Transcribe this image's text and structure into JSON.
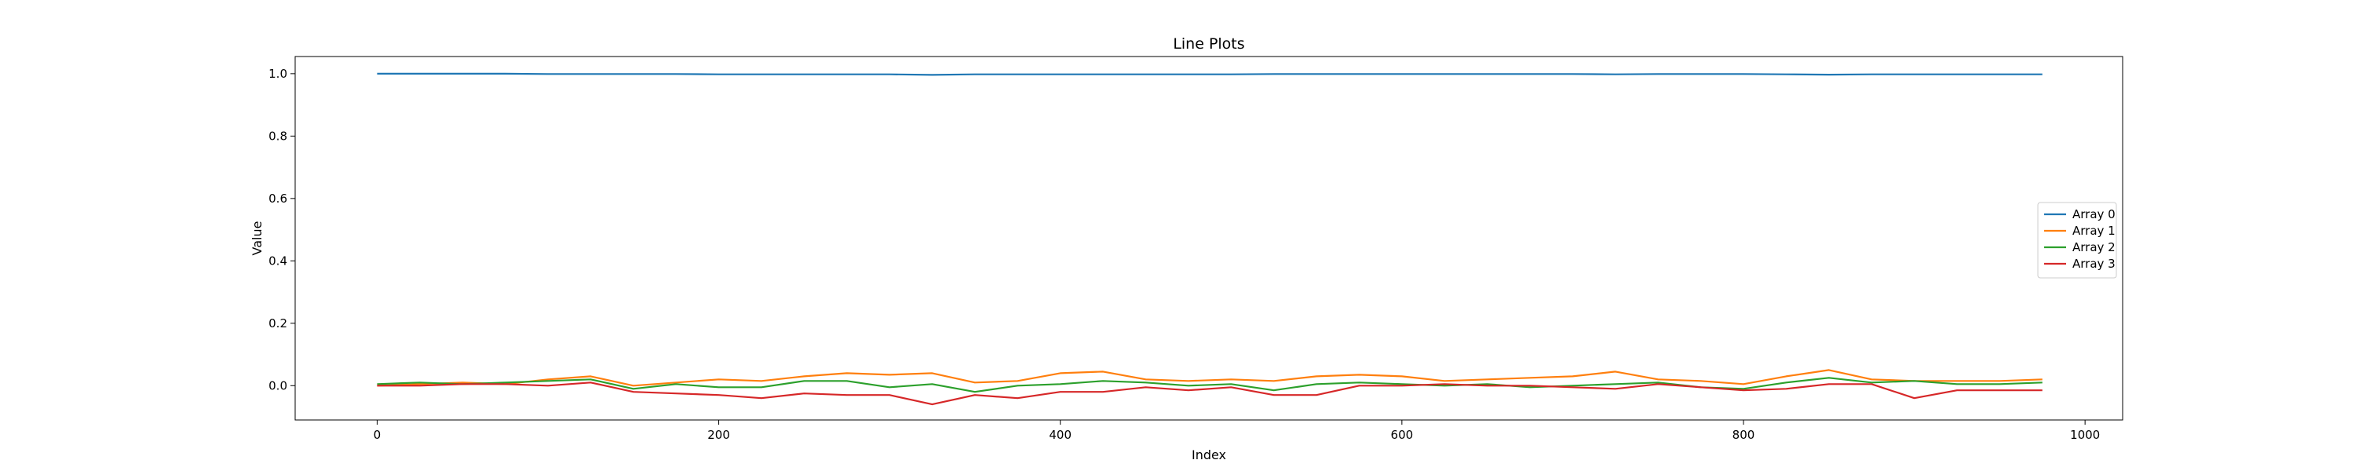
{
  "chart_data": {
    "type": "line",
    "title": "Line Plots",
    "xlabel": "Index",
    "ylabel": "Value",
    "xlim": [
      -48,
      1022
    ],
    "ylim": [
      -0.11,
      1.055
    ],
    "xticks": [
      0,
      200,
      400,
      600,
      800,
      1000
    ],
    "xtick_labels": [
      "0",
      "200",
      "400",
      "600",
      "800",
      "1000"
    ],
    "yticks": [
      0.0,
      0.2,
      0.4,
      0.6,
      0.8,
      1.0
    ],
    "ytick_labels": [
      "0.0",
      "0.2",
      "0.4",
      "0.6",
      "0.8",
      "1.0"
    ],
    "grid": false,
    "legend_position": "center-right",
    "x": [
      0,
      25,
      50,
      75,
      100,
      125,
      150,
      175,
      200,
      225,
      250,
      275,
      300,
      325,
      350,
      375,
      400,
      425,
      450,
      475,
      500,
      525,
      550,
      575,
      600,
      625,
      650,
      675,
      700,
      725,
      750,
      775,
      800,
      825,
      850,
      875,
      900,
      925,
      950,
      975
    ],
    "series": [
      {
        "name": "Array 0",
        "color": "#1f77b4",
        "values": [
          1.0,
          1.0,
          1.0,
          1.0,
          0.999,
          0.999,
          0.999,
          0.999,
          0.998,
          0.998,
          0.998,
          0.998,
          0.998,
          0.996,
          0.998,
          0.998,
          0.998,
          0.998,
          0.998,
          0.998,
          0.998,
          0.999,
          0.999,
          0.999,
          0.999,
          0.999,
          0.999,
          0.999,
          0.999,
          0.998,
          0.999,
          0.999,
          0.999,
          0.998,
          0.997,
          0.998,
          0.998,
          0.998,
          0.998,
          0.998
        ]
      },
      {
        "name": "Array 1",
        "color": "#ff7f0e",
        "values": [
          0.0,
          0.005,
          0.01,
          0.005,
          0.02,
          0.03,
          0.0,
          0.01,
          0.02,
          0.015,
          0.03,
          0.04,
          0.035,
          0.04,
          0.01,
          0.015,
          0.04,
          0.045,
          0.02,
          0.015,
          0.02,
          0.015,
          0.03,
          0.035,
          0.03,
          0.015,
          0.02,
          0.025,
          0.03,
          0.045,
          0.02,
          0.015,
          0.005,
          0.03,
          0.05,
          0.02,
          0.015,
          0.015,
          0.015,
          0.02
        ]
      },
      {
        "name": "Array 2",
        "color": "#2ca02c",
        "values": [
          0.005,
          0.01,
          0.005,
          0.01,
          0.015,
          0.02,
          -0.01,
          0.005,
          -0.005,
          -0.005,
          0.015,
          0.015,
          -0.005,
          0.005,
          -0.02,
          0.0,
          0.005,
          0.015,
          0.01,
          0.0,
          0.005,
          -0.015,
          0.005,
          0.01,
          0.005,
          0.0,
          0.005,
          -0.005,
          0.0,
          0.005,
          0.01,
          -0.005,
          -0.01,
          0.01,
          0.025,
          0.01,
          0.015,
          0.005,
          0.005,
          0.01
        ]
      },
      {
        "name": "Array 3",
        "color": "#d62728",
        "values": [
          0.0,
          0.0,
          0.005,
          0.005,
          0.0,
          0.01,
          -0.02,
          -0.025,
          -0.03,
          -0.04,
          -0.025,
          -0.03,
          -0.03,
          -0.06,
          -0.03,
          -0.04,
          -0.02,
          -0.02,
          -0.005,
          -0.015,
          -0.005,
          -0.03,
          -0.03,
          0.0,
          0.0,
          0.005,
          0.0,
          0.0,
          -0.005,
          -0.01,
          0.005,
          -0.005,
          -0.015,
          -0.01,
          0.005,
          0.005,
          -0.04,
          -0.015,
          -0.015,
          -0.015
        ]
      }
    ]
  }
}
